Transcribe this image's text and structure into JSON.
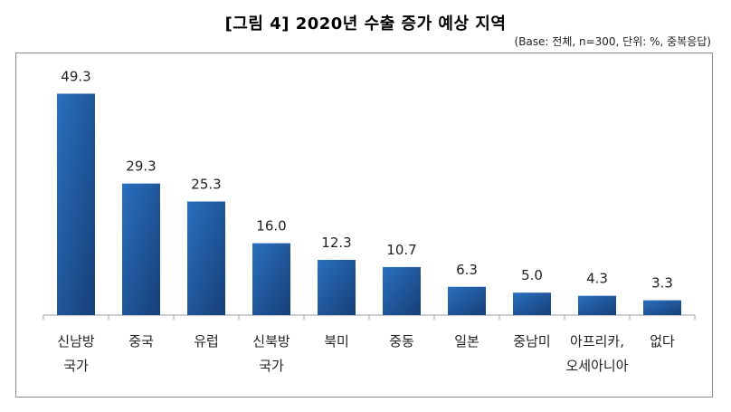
{
  "chart_data": {
    "type": "bar",
    "title": "[그림 4] 2020년 수출 증가 예상 지역",
    "note": "(Base: 전체, n=300, 단위: %, 중복응답)",
    "categories": [
      [
        "신남방",
        "국가"
      ],
      [
        "중국"
      ],
      [
        "유럽"
      ],
      [
        "신북방",
        "국가"
      ],
      [
        "북미"
      ],
      [
        "중동"
      ],
      [
        "일본"
      ],
      [
        "중남미"
      ],
      [
        "아프리카,",
        "오세아니아"
      ],
      [
        "없다"
      ]
    ],
    "values": [
      49.3,
      29.3,
      25.3,
      16.0,
      12.3,
      10.7,
      6.3,
      5.0,
      4.3,
      3.3
    ],
    "value_labels": [
      "49.3",
      "29.3",
      "25.3",
      "16.0",
      "12.3",
      "10.7",
      "6.3",
      "5.0",
      "4.3",
      "3.3"
    ],
    "ylim": [
      0,
      50
    ],
    "grid": false,
    "legend": "none",
    "colors": {
      "bar_top": "#2a6fbf",
      "bar_bottom": "#163f78",
      "axis": "#9a9a9a"
    }
  }
}
